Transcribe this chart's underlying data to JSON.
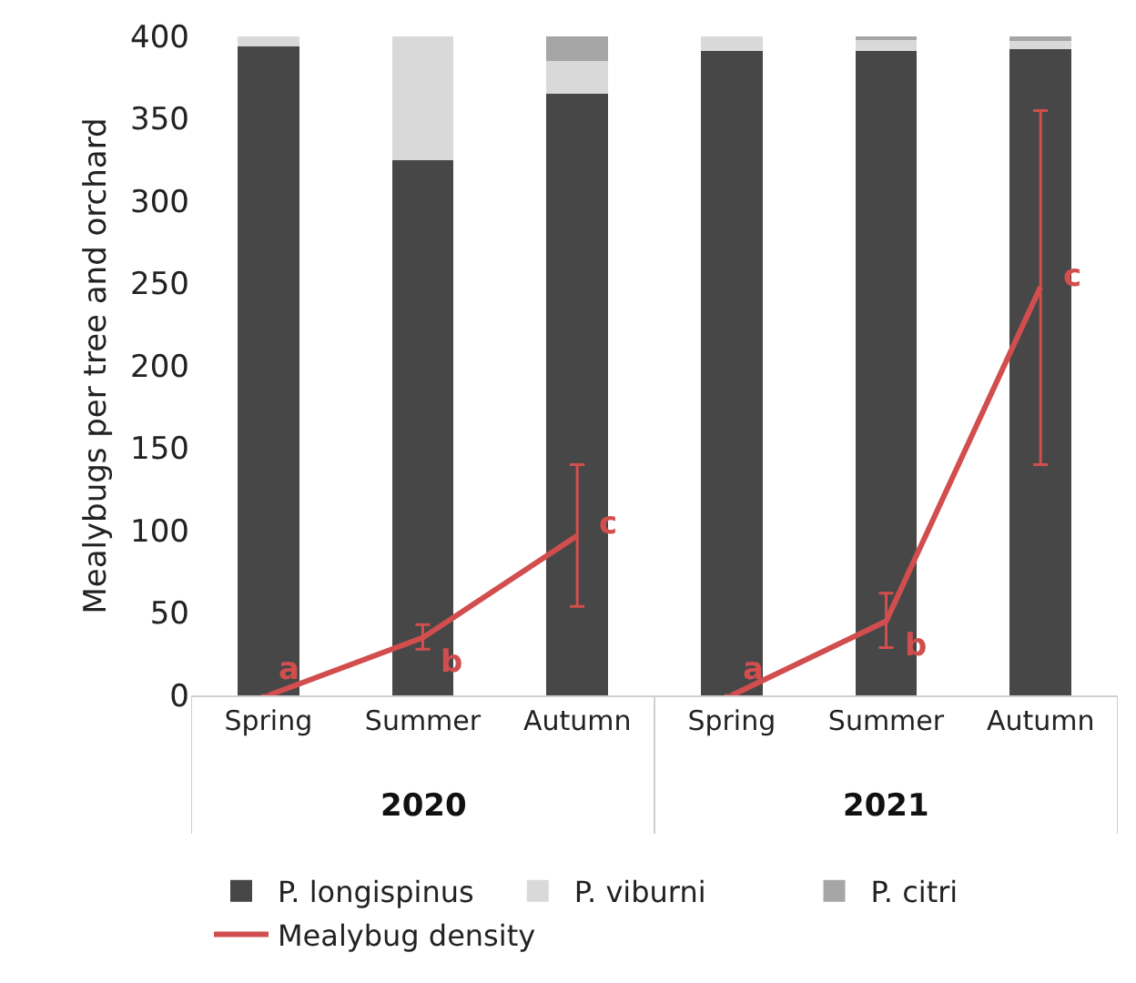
{
  "chart_data": {
    "type": "bar",
    "stacked": true,
    "ylabel": "Mealybugs per tree and orchard",
    "categories": [
      "Spring",
      "Summer",
      "Autumn",
      "Spring",
      "Summer",
      "Autumn"
    ],
    "series": [
      {
        "name": "P. longispinus",
        "color": "#474747",
        "values": [
          394,
          325,
          365,
          391,
          391,
          392
        ]
      },
      {
        "name": "P. viburni",
        "color": "#d9d9d9",
        "values": [
          6,
          75,
          20,
          9,
          7,
          5
        ]
      },
      {
        "name": "P. citri",
        "color": "#a6a6a6",
        "values": [
          0,
          0,
          15,
          0,
          2,
          3
        ]
      },
      {
        "name": "Mealybug density",
        "type": "line",
        "color": "#d24e4e",
        "values": [
          0,
          35,
          97,
          null,
          null,
          null
        ],
        "errors": [
          null,
          [
            28,
            43
          ],
          [
            54,
            140
          ],
          null,
          null,
          null
        ],
        "value_labels": [
          "a",
          "b",
          "c",
          null,
          null,
          null
        ]
      },
      {
        "type": "line",
        "color": "#d24e4e",
        "values": [
          null,
          null,
          null,
          0,
          45,
          248
        ],
        "errors": [
          null,
          null,
          null,
          null,
          [
            29,
            62
          ],
          [
            140,
            355
          ]
        ],
        "value_labels": [
          null,
          null,
          null,
          "a",
          "b",
          "c"
        ]
      }
    ],
    "ylim": [
      0,
      400
    ],
    "yticks": [
      0,
      50,
      100,
      150,
      200,
      250,
      300,
      350,
      400
    ],
    "grid": false,
    "legend": "bottom",
    "marker": "none",
    "line_style": "solid",
    "annotations": [
      "2020",
      "2021"
    ]
  }
}
